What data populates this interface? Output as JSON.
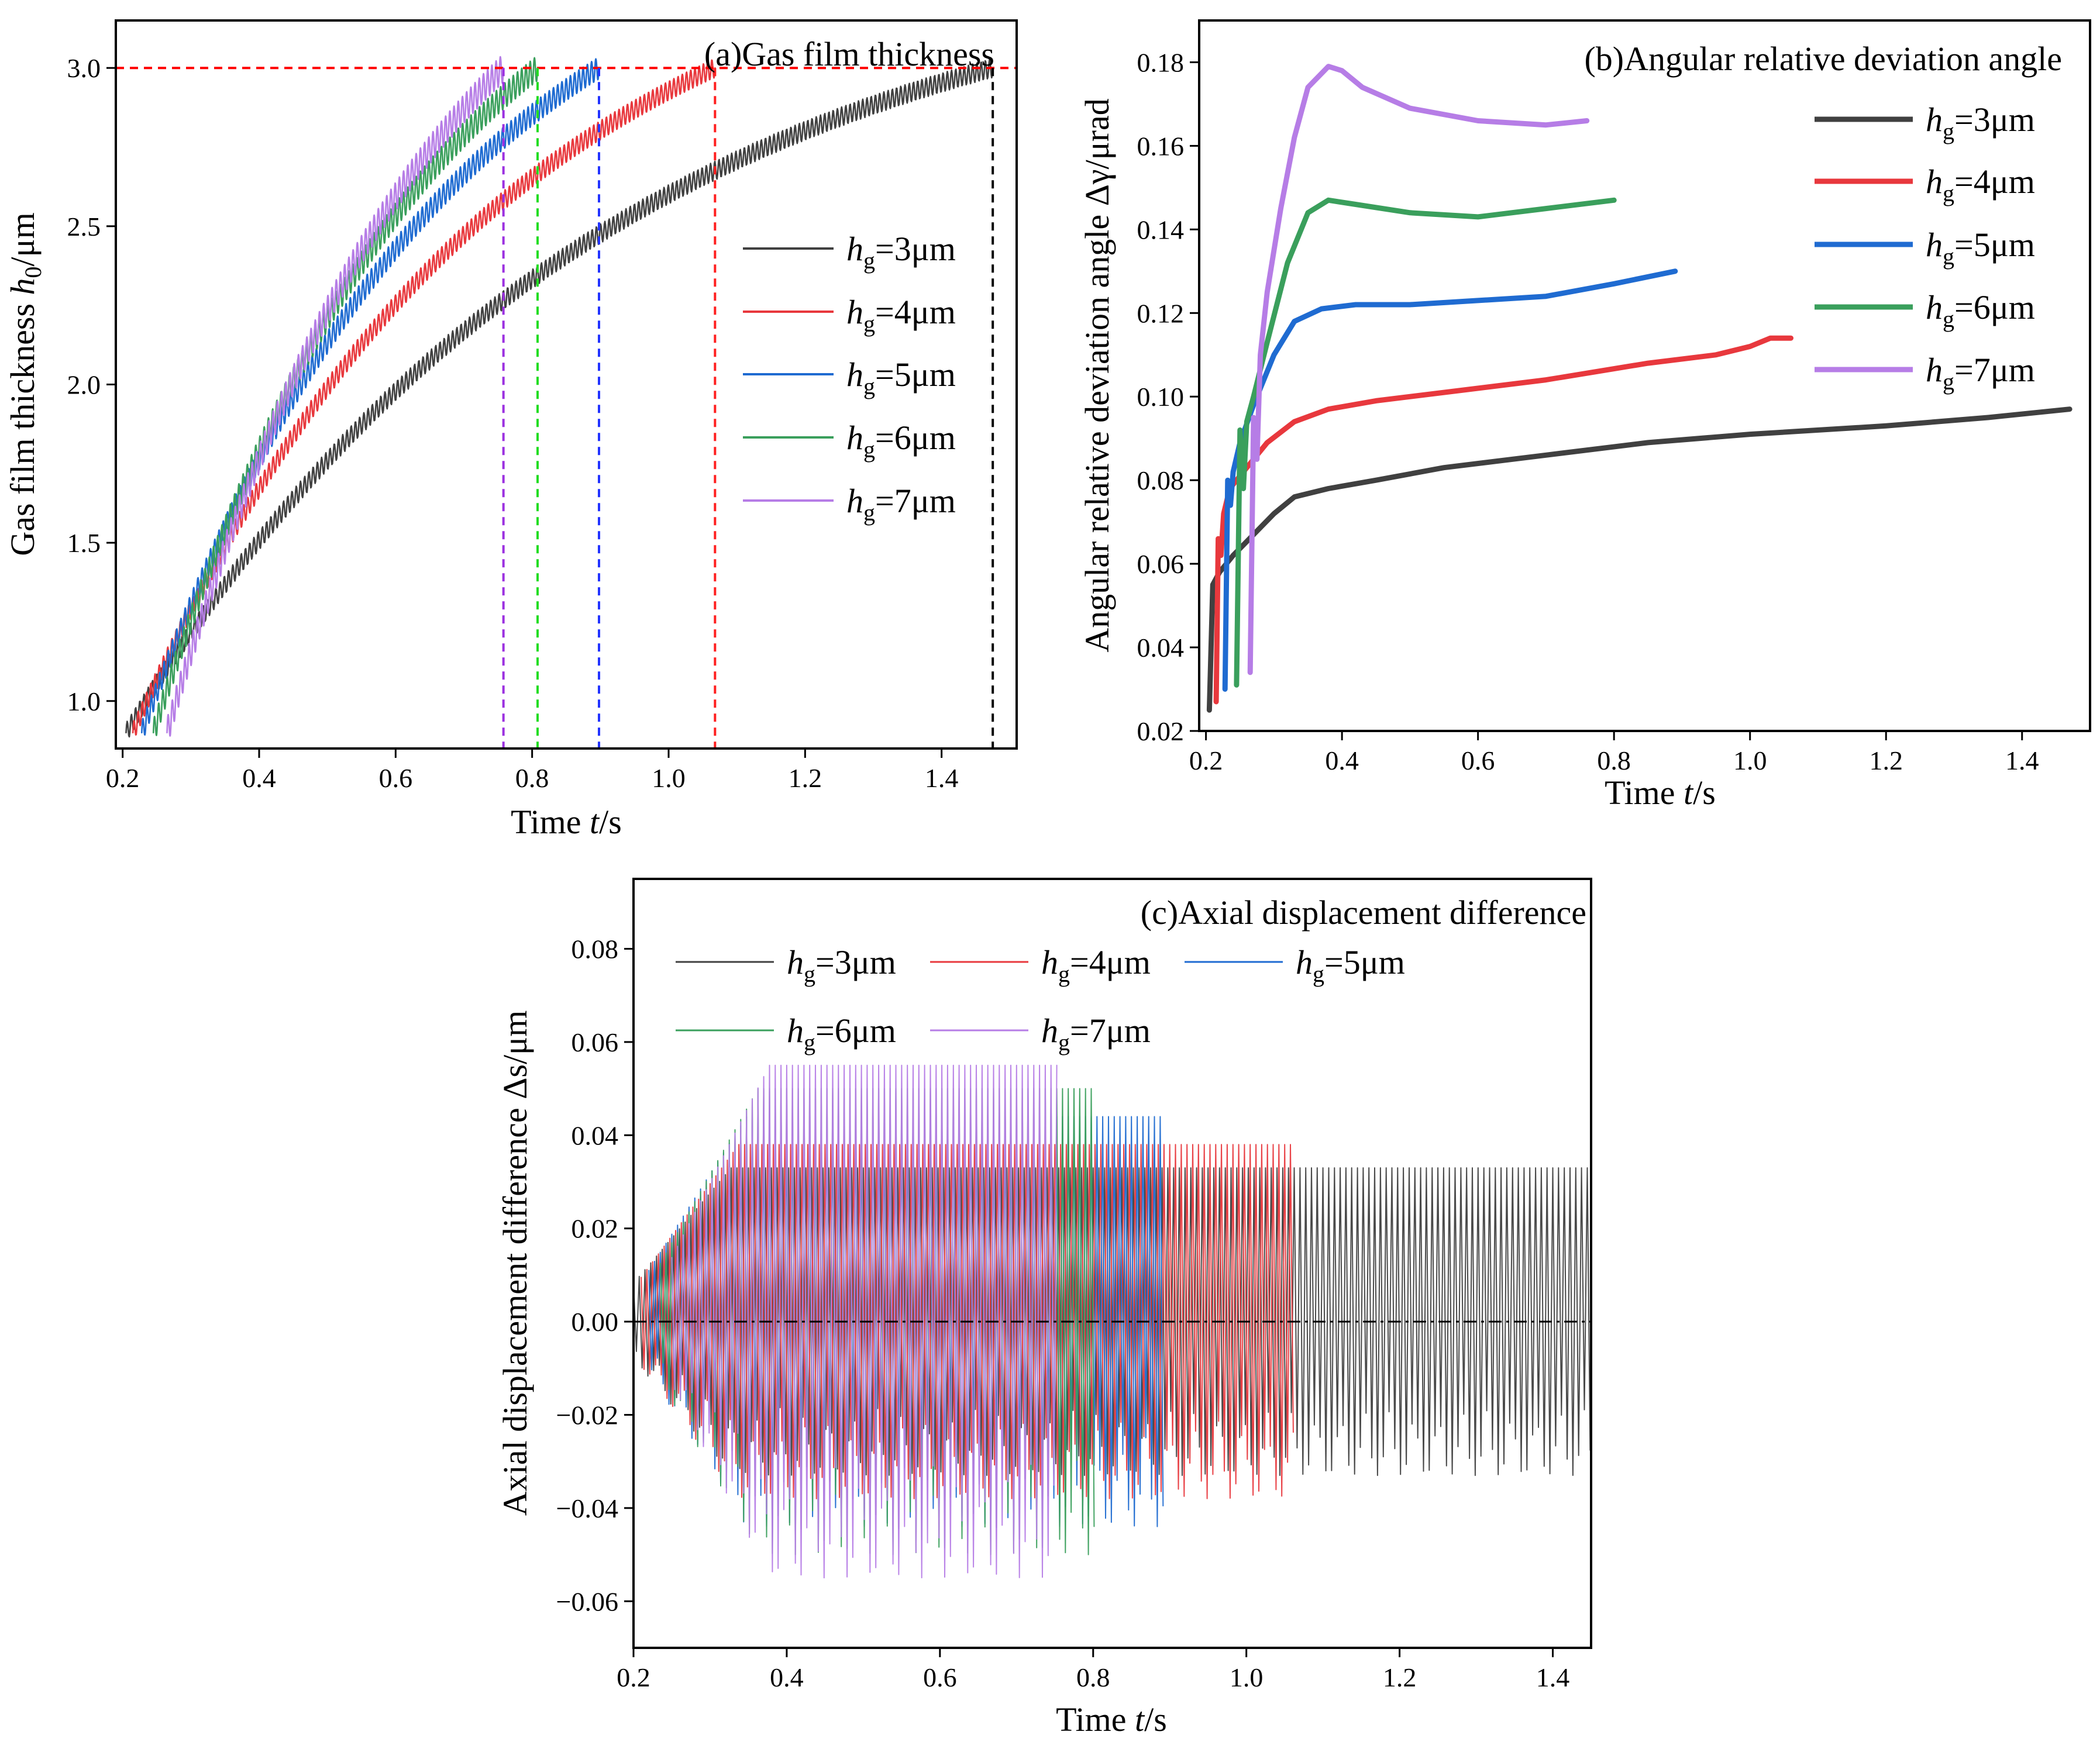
{
  "colors": {
    "s3": "#404040",
    "s4": "#e8383d",
    "s5": "#1f6bd1",
    "s6": "#3a9f5c",
    "s7": "#b67de6",
    "ref_line": "#ff0000",
    "ref_zero": "#000000"
  },
  "chart_data": [
    {
      "panel": "a",
      "type": "line",
      "title": "(a)Gas film thickness",
      "xlabel_main": "Time ",
      "xlabel_var": "t",
      "xlabel_unit": "/s",
      "ylabel_main": "Gas film thickness ",
      "ylabel_var": "h",
      "ylabel_sub": "0",
      "ylabel_unit": "/μm",
      "xlim": [
        0.19,
        1.51
      ],
      "ylim": [
        0.85,
        3.15
      ],
      "xticks": [
        "0.2",
        "0.4",
        "0.6",
        "0.8",
        "1.0",
        "1.2",
        "1.4"
      ],
      "yticks": [
        "1.0",
        "1.5",
        "2.0",
        "2.5",
        "3.0"
      ],
      "legend_position": "middle-right",
      "reference_lines": [
        {
          "orientation": "horizontal",
          "value": 3.0,
          "color": "#ff0000"
        },
        {
          "orientation": "vertical",
          "value": 0.758,
          "color": "#9b30e0"
        },
        {
          "orientation": "vertical",
          "value": 0.808,
          "color": "#22dd22"
        },
        {
          "orientation": "vertical",
          "value": 0.898,
          "color": "#2233ff"
        },
        {
          "orientation": "vertical",
          "value": 1.068,
          "color": "#ff2020"
        },
        {
          "orientation": "vertical",
          "value": 1.475,
          "color": "#000000"
        }
      ],
      "series": [
        {
          "name": "hg=3μm",
          "var": "h",
          "sub": "g",
          "value": "=3μm",
          "color_key": "s3",
          "start": 0.205,
          "end": 1.475,
          "y0": 0.9,
          "y1": 3.0,
          "k": 1.8,
          "oscillation": 0.03
        },
        {
          "name": "hg=4μm",
          "var": "h",
          "sub": "g",
          "value": "=4μm",
          "color_key": "s4",
          "start": 0.215,
          "end": 1.068,
          "y0": 0.9,
          "y1": 3.0,
          "k": 1.6,
          "oscillation": 0.03
        },
        {
          "name": "hg=5μm",
          "var": "h",
          "sub": "g",
          "value": "=5μm",
          "color_key": "s5",
          "start": 0.228,
          "end": 0.898,
          "y0": 0.9,
          "y1": 3.0,
          "k": 1.5,
          "oscillation": 0.035
        },
        {
          "name": "hg=6μm",
          "var": "h",
          "sub": "g",
          "value": "=6μm",
          "color_key": "s6",
          "start": 0.245,
          "end": 0.808,
          "y0": 0.9,
          "y1": 3.0,
          "k": 1.4,
          "oscillation": 0.04
        },
        {
          "name": "hg=7μm",
          "var": "h",
          "sub": "g",
          "value": "=7μm",
          "color_key": "s7",
          "start": 0.265,
          "end": 0.758,
          "y0": 0.9,
          "y1": 3.0,
          "k": 1.3,
          "oscillation": 0.045
        }
      ]
    },
    {
      "panel": "b",
      "type": "line",
      "title": "(b)Angular relative deviation angle",
      "xlabel_main": "Time ",
      "xlabel_var": "t",
      "xlabel_unit": "/s",
      "ylabel_main": "Angular relative deviation angle Δγ/μrad",
      "xlim": [
        0.19,
        1.5
      ],
      "ylim": [
        0.02,
        0.19
      ],
      "xticks": [
        "0.2",
        "0.4",
        "0.6",
        "0.8",
        "1.0",
        "1.2",
        "1.4"
      ],
      "yticks": [
        "0.02",
        "0.04",
        "0.06",
        "0.08",
        "0.10",
        "0.12",
        "0.14",
        "0.16",
        "0.18"
      ],
      "legend_position": "top-right",
      "series": [
        {
          "name": "hg=3μm",
          "var": "h",
          "sub": "g",
          "value": "=3μm",
          "color_key": "s3",
          "x": [
            0.205,
            0.21,
            0.22,
            0.24,
            0.27,
            0.3,
            0.33,
            0.38,
            0.45,
            0.55,
            0.7,
            0.85,
            1.0,
            1.2,
            1.35,
            1.47
          ],
          "y": [
            0.025,
            0.055,
            0.058,
            0.062,
            0.067,
            0.072,
            0.076,
            0.078,
            0.08,
            0.083,
            0.086,
            0.089,
            0.091,
            0.093,
            0.095,
            0.097
          ]
        },
        {
          "name": "hg=4μm",
          "var": "h",
          "sub": "g",
          "value": "=4μm",
          "color_key": "s4",
          "x": [
            0.215,
            0.218,
            0.222,
            0.226,
            0.235,
            0.26,
            0.29,
            0.33,
            0.38,
            0.45,
            0.55,
            0.7,
            0.85,
            0.95,
            1.0,
            1.03,
            1.06
          ],
          "y": [
            0.027,
            0.066,
            0.062,
            0.072,
            0.078,
            0.083,
            0.089,
            0.094,
            0.097,
            0.099,
            0.101,
            0.104,
            0.108,
            0.11,
            0.112,
            0.114,
            0.114
          ]
        },
        {
          "name": "hg=5μm",
          "var": "h",
          "sub": "g",
          "value": "=5μm",
          "color_key": "s5",
          "x": [
            0.228,
            0.232,
            0.236,
            0.24,
            0.25,
            0.27,
            0.3,
            0.33,
            0.37,
            0.42,
            0.5,
            0.6,
            0.7,
            0.8,
            0.89
          ],
          "y": [
            0.03,
            0.08,
            0.074,
            0.082,
            0.089,
            0.098,
            0.11,
            0.118,
            0.121,
            0.122,
            0.122,
            0.123,
            0.124,
            0.127,
            0.13
          ]
        },
        {
          "name": "hg=6μm",
          "var": "h",
          "sub": "g",
          "value": "=6μm",
          "color_key": "s6",
          "x": [
            0.245,
            0.25,
            0.255,
            0.26,
            0.27,
            0.29,
            0.32,
            0.35,
            0.38,
            0.42,
            0.5,
            0.6,
            0.7,
            0.8
          ],
          "y": [
            0.031,
            0.092,
            0.078,
            0.094,
            0.1,
            0.113,
            0.132,
            0.144,
            0.147,
            0.146,
            0.144,
            0.143,
            0.145,
            0.147
          ]
        },
        {
          "name": "hg=7μm",
          "var": "h",
          "sub": "g",
          "value": "=7μm",
          "color_key": "s7",
          "x": [
            0.265,
            0.27,
            0.275,
            0.28,
            0.29,
            0.31,
            0.33,
            0.35,
            0.38,
            0.4,
            0.43,
            0.5,
            0.6,
            0.7,
            0.76
          ],
          "y": [
            0.034,
            0.095,
            0.085,
            0.11,
            0.125,
            0.145,
            0.162,
            0.174,
            0.179,
            0.178,
            0.174,
            0.169,
            0.166,
            0.165,
            0.166
          ]
        }
      ]
    },
    {
      "panel": "c",
      "type": "line",
      "title": "(c)Axial displacement difference",
      "xlabel_main": "Time ",
      "xlabel_var": "t",
      "xlabel_unit": "/s",
      "ylabel_main": "Axial displacement difference Δs/μm",
      "xlim": [
        0.2,
        1.45
      ],
      "ylim": [
        -0.07,
        0.095
      ],
      "xticks": [
        "0.2",
        "0.4",
        "0.6",
        "0.8",
        "1.0",
        "1.2",
        "1.4"
      ],
      "yticks": [
        "−0.06",
        "−0.04",
        "−0.02",
        "0.00",
        "0.02",
        "0.04",
        "0.06",
        "0.08"
      ],
      "legend_position": "top",
      "series": [
        {
          "name": "hg=3μm",
          "var": "h",
          "sub": "g",
          "value": "=3μm",
          "color_key": "s3",
          "start": 0.2,
          "end": 1.45,
          "amplitude": 0.033
        },
        {
          "name": "hg=4μm",
          "var": "h",
          "sub": "g",
          "value": "=4μm",
          "color_key": "s4",
          "start": 0.21,
          "end": 1.065,
          "amplitude": 0.038
        },
        {
          "name": "hg=5μm",
          "var": "h",
          "sub": "g",
          "value": "=5μm",
          "color_key": "s5",
          "start": 0.22,
          "end": 0.895,
          "amplitude": 0.044
        },
        {
          "name": "hg=6μm",
          "var": "h",
          "sub": "g",
          "value": "=6μm",
          "color_key": "s6",
          "start": 0.235,
          "end": 0.805,
          "amplitude": 0.05
        },
        {
          "name": "hg=7μm",
          "var": "h",
          "sub": "g",
          "value": "=7μm",
          "color_key": "s7",
          "start": 0.25,
          "end": 0.755,
          "amplitude": 0.055
        }
      ]
    }
  ]
}
